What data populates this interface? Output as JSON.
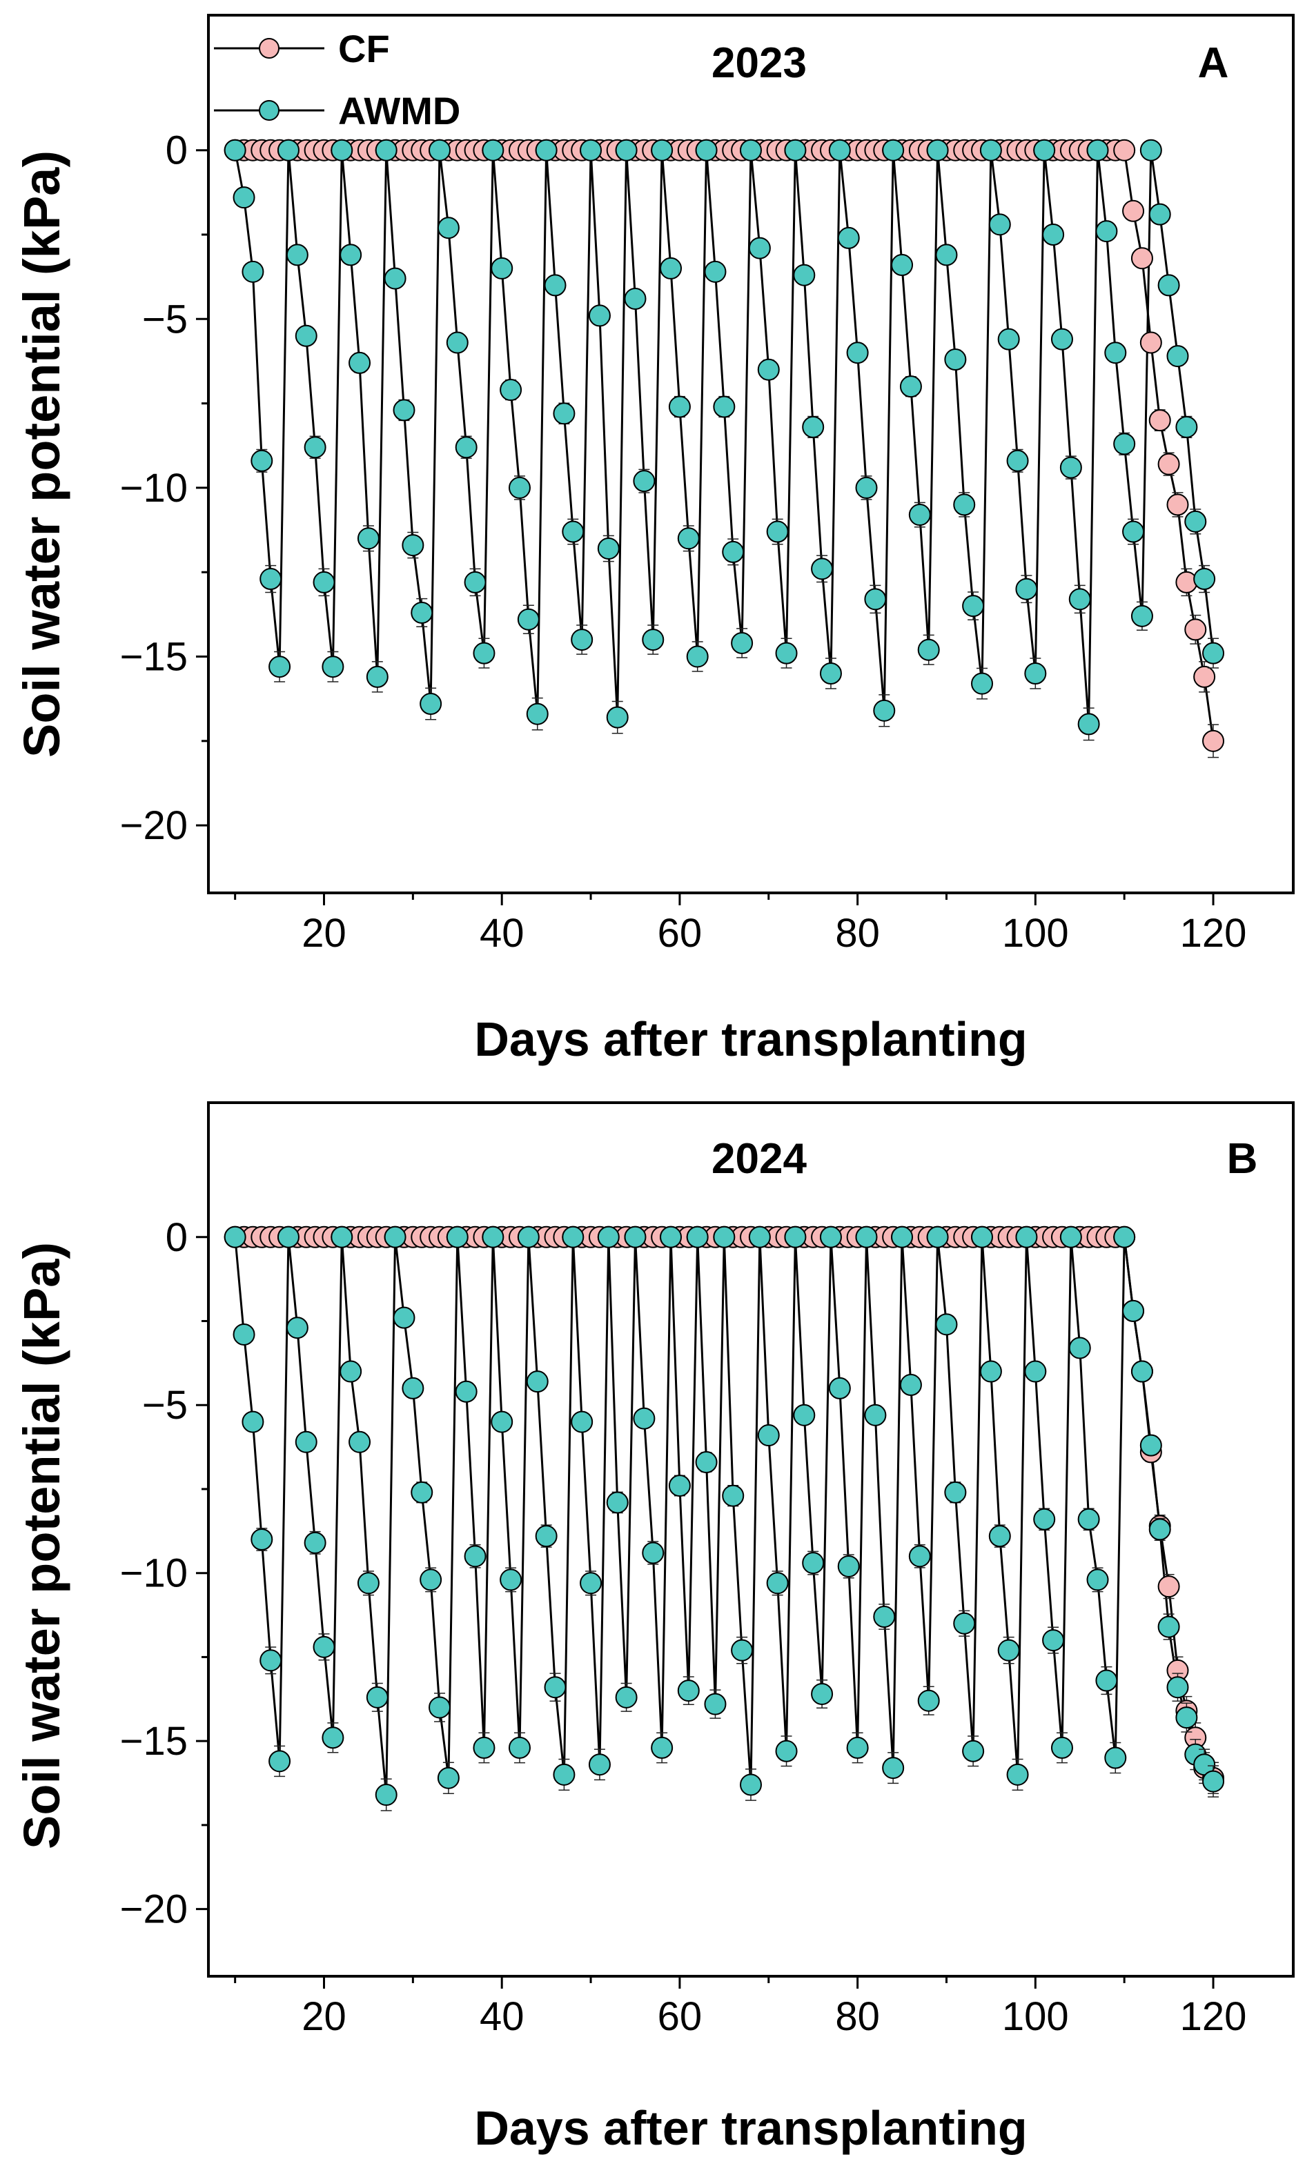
{
  "chart_data": [
    {
      "type": "line",
      "panel_label": "A",
      "title": "2023",
      "xlabel": "Days after transplanting",
      "ylabel": "Soil water potential (kPa)",
      "xlim": [
        7,
        129
      ],
      "ylim": [
        -22,
        4
      ],
      "xticks": [
        20,
        40,
        60,
        80,
        100,
        120
      ],
      "yticks": [
        0,
        -5,
        -10,
        -15,
        -20
      ],
      "legend": {
        "position": "top-left",
        "entries": [
          "CF",
          "AWMD"
        ]
      },
      "colors": {
        "CF": "#f7b8b8",
        "AWMD": "#4fc8c0",
        "line": "#000000",
        "axis": "#000000"
      },
      "series": [
        {
          "name": "CF",
          "x": [
            10,
            11,
            12,
            13,
            14,
            15,
            16,
            17,
            18,
            19,
            20,
            21,
            22,
            23,
            24,
            25,
            26,
            27,
            28,
            29,
            30,
            31,
            32,
            33,
            34,
            35,
            36,
            37,
            38,
            39,
            40,
            41,
            42,
            43,
            44,
            45,
            46,
            47,
            48,
            49,
            50,
            51,
            52,
            53,
            54,
            55,
            56,
            57,
            58,
            59,
            60,
            61,
            62,
            63,
            64,
            65,
            66,
            67,
            68,
            69,
            70,
            71,
            72,
            73,
            74,
            75,
            76,
            77,
            78,
            79,
            80,
            81,
            82,
            83,
            84,
            85,
            86,
            87,
            88,
            89,
            90,
            91,
            92,
            93,
            94,
            95,
            96,
            97,
            98,
            99,
            100,
            101,
            102,
            103,
            104,
            105,
            106,
            107,
            108,
            109,
            110,
            111,
            112,
            113,
            114,
            115,
            116,
            117,
            118,
            119,
            120
          ],
          "y": [
            0,
            0,
            0,
            0,
            0,
            0,
            0,
            0,
            0,
            0,
            0,
            0,
            0,
            0,
            0,
            0,
            0,
            0,
            0,
            0,
            0,
            0,
            0,
            0,
            0,
            0,
            0,
            0,
            0,
            0,
            0,
            0,
            0,
            0,
            0,
            0,
            0,
            0,
            0,
            0,
            0,
            0,
            0,
            0,
            0,
            0,
            0,
            0,
            0,
            0,
            0,
            0,
            0,
            0,
            0,
            0,
            0,
            0,
            0,
            0,
            0,
            0,
            0,
            0,
            0,
            0,
            0,
            0,
            0,
            0,
            0,
            0,
            0,
            0,
            0,
            0,
            0,
            0,
            0,
            0,
            0,
            0,
            0,
            0,
            0,
            0,
            0,
            0,
            0,
            0,
            0,
            0,
            0,
            0,
            0,
            0,
            0,
            0,
            0,
            0,
            0,
            -1.8,
            -3.2,
            -5.7,
            -8.0,
            -9.3,
            -10.5,
            -12.8,
            -14.2,
            -15.6,
            -17.5
          ]
        },
        {
          "name": "AWMD",
          "x": [
            10,
            11,
            12,
            13,
            14,
            15,
            16,
            17,
            18,
            19,
            20,
            21,
            22,
            23,
            24,
            25,
            26,
            27,
            28,
            29,
            30,
            31,
            32,
            33,
            34,
            35,
            36,
            37,
            38,
            39,
            40,
            41,
            42,
            43,
            44,
            45,
            46,
            47,
            48,
            49,
            50,
            51,
            52,
            53,
            54,
            55,
            56,
            57,
            58,
            59,
            60,
            61,
            62,
            63,
            64,
            65,
            66,
            67,
            68,
            69,
            70,
            71,
            72,
            73,
            74,
            75,
            76,
            77,
            78,
            79,
            80,
            81,
            82,
            83,
            84,
            85,
            86,
            87,
            88,
            89,
            90,
            91,
            92,
            93,
            94,
            95,
            96,
            97,
            98,
            99,
            100,
            101,
            102,
            103,
            104,
            105,
            106,
            107,
            108,
            109,
            110,
            111,
            112,
            113,
            114,
            115,
            116,
            117,
            118,
            119,
            120
          ],
          "y": [
            0,
            -1.4,
            -3.6,
            -9.2,
            -12.7,
            -15.3,
            0,
            -3.1,
            -5.5,
            -8.8,
            -12.8,
            -15.3,
            0,
            -3.1,
            -6.3,
            -11.5,
            -15.6,
            0,
            -3.8,
            -7.7,
            -11.7,
            -13.7,
            -16.4,
            0,
            -2.3,
            -5.7,
            -8.8,
            -12.8,
            -14.9,
            0,
            -3.5,
            -7.1,
            -10.0,
            -13.9,
            -16.7,
            0,
            -4.0,
            -7.8,
            -11.3,
            -14.5,
            0,
            -4.9,
            -11.8,
            -16.8,
            0,
            -4.4,
            -9.8,
            -14.5,
            0,
            -3.5,
            -7.6,
            -11.5,
            -15.0,
            0,
            -3.6,
            -7.6,
            -11.9,
            -14.6,
            0,
            -2.9,
            -6.5,
            -11.3,
            -14.9,
            0,
            -3.7,
            -8.2,
            -12.4,
            -15.5,
            0,
            -2.6,
            -6.0,
            -10.0,
            -13.3,
            -16.6,
            0,
            -3.4,
            -7.0,
            -10.8,
            -14.8,
            0,
            -3.1,
            -6.2,
            -10.5,
            -13.5,
            -15.8,
            0,
            -2.2,
            -5.6,
            -9.2,
            -13.0,
            -15.5,
            0,
            -2.5,
            -5.6,
            -9.4,
            -13.3,
            -17.0,
            0,
            -2.4,
            -6.0,
            -8.7,
            -11.3,
            -13.8,
            0,
            -1.9,
            -4.0,
            -6.1,
            -8.2,
            -11.0,
            -12.7,
            -14.9
          ]
        }
      ]
    },
    {
      "type": "line",
      "panel_label": "B",
      "title": "2024",
      "xlabel": "Days after transplanting",
      "ylabel": "Soil water potential (kPa)",
      "xlim": [
        7,
        129
      ],
      "ylim": [
        -22,
        4
      ],
      "xticks": [
        20,
        40,
        60,
        80,
        100,
        120
      ],
      "yticks": [
        0,
        -5,
        -10,
        -15,
        -20
      ],
      "colors": {
        "CF": "#f7b8b8",
        "AWMD": "#4fc8c0",
        "line": "#000000",
        "axis": "#000000"
      },
      "series": [
        {
          "name": "CF",
          "x": [
            10,
            11,
            12,
            13,
            14,
            15,
            16,
            17,
            18,
            19,
            20,
            21,
            22,
            23,
            24,
            25,
            26,
            27,
            28,
            29,
            30,
            31,
            32,
            33,
            34,
            35,
            36,
            37,
            38,
            39,
            40,
            41,
            42,
            43,
            44,
            45,
            46,
            47,
            48,
            49,
            50,
            51,
            52,
            53,
            54,
            55,
            56,
            57,
            58,
            59,
            60,
            61,
            62,
            63,
            64,
            65,
            66,
            67,
            68,
            69,
            70,
            71,
            72,
            73,
            74,
            75,
            76,
            77,
            78,
            79,
            80,
            81,
            82,
            83,
            84,
            85,
            86,
            87,
            88,
            89,
            90,
            91,
            92,
            93,
            94,
            95,
            96,
            97,
            98,
            99,
            100,
            101,
            102,
            103,
            104,
            105,
            106,
            107,
            108,
            109,
            110,
            111,
            112,
            113,
            114,
            115,
            116,
            117,
            118,
            119,
            120
          ],
          "y": [
            0,
            0,
            0,
            0,
            0,
            0,
            0,
            0,
            0,
            0,
            0,
            0,
            0,
            0,
            0,
            0,
            0,
            0,
            0,
            0,
            0,
            0,
            0,
            0,
            0,
            0,
            0,
            0,
            0,
            0,
            0,
            0,
            0,
            0,
            0,
            0,
            0,
            0,
            0,
            0,
            0,
            0,
            0,
            0,
            0,
            0,
            0,
            0,
            0,
            0,
            0,
            0,
            0,
            0,
            0,
            0,
            0,
            0,
            0,
            0,
            0,
            0,
            0,
            0,
            0,
            0,
            0,
            0,
            0,
            0,
            0,
            0,
            0,
            0,
            0,
            0,
            0,
            0,
            0,
            0,
            0,
            0,
            0,
            0,
            0,
            0,
            0,
            0,
            0,
            0,
            0,
            0,
            0,
            0,
            0,
            0,
            0,
            0,
            0,
            0,
            0,
            -2.2,
            -4.0,
            -6.4,
            -8.6,
            -10.4,
            -12.9,
            -14.1,
            -14.9,
            -15.8,
            -16.1
          ]
        },
        {
          "name": "AWMD",
          "x": [
            10,
            11,
            12,
            13,
            14,
            15,
            16,
            17,
            18,
            19,
            20,
            21,
            22,
            23,
            24,
            25,
            26,
            27,
            28,
            29,
            30,
            31,
            32,
            33,
            34,
            35,
            36,
            37,
            38,
            39,
            40,
            41,
            42,
            43,
            44,
            45,
            46,
            47,
            48,
            49,
            50,
            51,
            52,
            53,
            54,
            55,
            56,
            57,
            58,
            59,
            60,
            61,
            62,
            63,
            64,
            65,
            66,
            67,
            68,
            69,
            70,
            71,
            72,
            73,
            74,
            75,
            76,
            77,
            78,
            79,
            80,
            81,
            82,
            83,
            84,
            85,
            86,
            87,
            88,
            89,
            90,
            91,
            92,
            93,
            94,
            95,
            96,
            97,
            98,
            99,
            100,
            101,
            102,
            103,
            104,
            105,
            106,
            107,
            108,
            109,
            110,
            111,
            112,
            113,
            114,
            115,
            116,
            117,
            118,
            119,
            120
          ],
          "y": [
            0,
            -2.9,
            -5.5,
            -9.0,
            -12.6,
            -15.6,
            0,
            -2.7,
            -6.1,
            -9.1,
            -12.2,
            -14.9,
            0,
            -4.0,
            -6.1,
            -10.3,
            -13.7,
            -16.6,
            0,
            -2.4,
            -4.5,
            -7.6,
            -10.2,
            -14.0,
            -16.1,
            0,
            -4.6,
            -9.5,
            -15.2,
            0,
            -5.5,
            -10.2,
            -15.2,
            0,
            -4.3,
            -8.9,
            -13.4,
            -16.0,
            0,
            -5.5,
            -10.3,
            -15.7,
            0,
            -7.9,
            -13.7,
            0,
            -5.4,
            -9.4,
            -15.2,
            0,
            -7.4,
            -13.5,
            0,
            -6.7,
            -13.9,
            0,
            -7.7,
            -12.3,
            -16.3,
            0,
            -5.9,
            -10.3,
            -15.3,
            0,
            -5.3,
            -9.7,
            -13.6,
            0,
            -4.5,
            -9.8,
            -15.2,
            0,
            -5.3,
            -11.3,
            -15.8,
            0,
            -4.4,
            -9.5,
            -13.8,
            0,
            -2.6,
            -7.6,
            -11.5,
            -15.3,
            0,
            -4.0,
            -8.9,
            -12.3,
            -16.0,
            0,
            -4.0,
            -8.4,
            -12.0,
            -15.2,
            0,
            -3.3,
            -8.4,
            -10.2,
            -13.2,
            -15.5,
            0,
            -2.2,
            -4.0,
            -6.2,
            -8.7,
            -11.6,
            -13.4,
            -14.3,
            -15.4,
            -15.7,
            -16.2
          ]
        }
      ]
    }
  ]
}
